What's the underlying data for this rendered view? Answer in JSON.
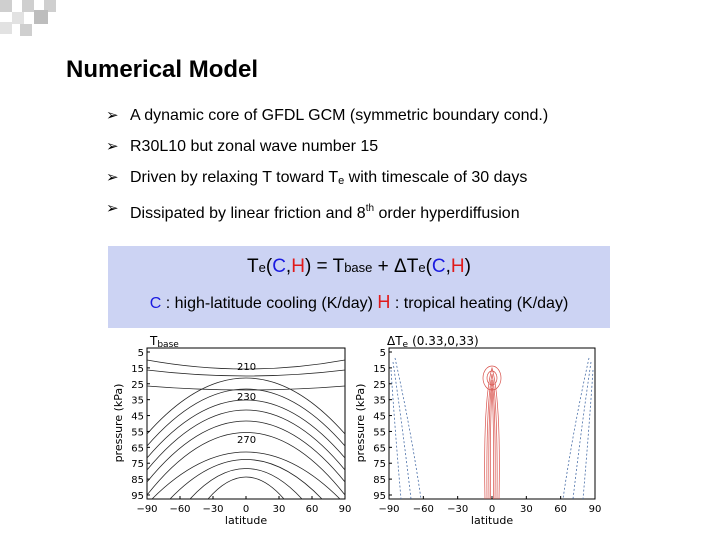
{
  "title": "Numerical Model",
  "bullets": [
    {
      "text": "A dynamic core of GFDL GCM (symmetric boundary cond.)"
    },
    {
      "text": "R30L10 but zonal wave number 15"
    },
    {
      "pre": "Driven by relaxing T toward T",
      "sub": "e",
      "post": " with timescale of 30 days"
    },
    {
      "pre": "Dissipated by linear friction and 8",
      "sup": "th",
      "post": " order hyperdiffusion"
    }
  ],
  "equation": {
    "lhs_T": "T",
    "lhs_sub": "e",
    "open": "(",
    "C": "C",
    "comma": ",",
    "H": "H",
    "close": ")",
    "eq": " = T",
    "base_sub": "base",
    "plus": " + ΔT",
    "delta_sub": "e",
    "open2": "(",
    "C2": "C",
    "comma2": ",",
    "H2": "H",
    "close2": ")"
  },
  "legend_line": {
    "C": "C",
    "C_desc": " : high-latitude cooling (K/day)",
    "H": "H",
    "H_desc": " : tropical heating (K/day)"
  },
  "plots": {
    "left": {
      "title": "T",
      "title_sub": "base",
      "xlabel": "latitude",
      "ylabel": "pressure (kPa)",
      "xticks": [
        "−90",
        "−60",
        "−30",
        "0",
        "30",
        "60",
        "90"
      ],
      "yticks": [
        "5",
        "15",
        "25",
        "35",
        "45",
        "55",
        "65",
        "75",
        "85",
        "95"
      ],
      "contour_labels": [
        "210",
        "230",
        "270"
      ]
    },
    "right": {
      "title": "ΔT",
      "title_sub": "e",
      "title_args": "(0.33,0,33)",
      "xlabel": "latitude",
      "ylabel": "pressure (kPa)",
      "xticks": [
        "−90",
        "−60",
        "−30",
        "0",
        "30",
        "60",
        "90"
      ],
      "yticks": [
        "5",
        "15",
        "25",
        "35",
        "45",
        "55",
        "65",
        "75",
        "85",
        "95"
      ]
    }
  },
  "colors": {
    "decor_gray": "#c8c8c8",
    "eq_box": "#ccd3f3",
    "cooling": "#1a1ae0",
    "heating": "#e01a1a",
    "cooling_contour": "#4a6fa8",
    "heating_contour": "#d8504a"
  }
}
